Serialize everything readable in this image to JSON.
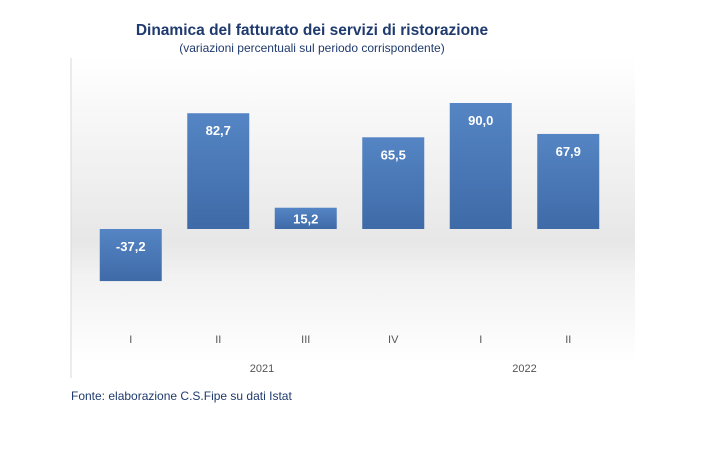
{
  "chart_data": {
    "type": "bar",
    "title": "Dinamica del fatturato dei servizi di ristorazione",
    "subtitle": "(variazioni percentuali sul periodo corrispondente)",
    "categories": [
      "I",
      "II",
      "III",
      "IV",
      "I",
      "II"
    ],
    "groups": [
      {
        "label": "2021",
        "categories": [
          "I",
          "II",
          "III",
          "IV"
        ]
      },
      {
        "label": "2022",
        "categories": [
          "I",
          "II"
        ]
      }
    ],
    "values": [
      -37.2,
      82.7,
      15.2,
      65.5,
      90.0,
      67.9
    ],
    "value_labels": [
      "-37,2",
      "82,7",
      "15,2",
      "65,5",
      "90,0",
      "67,9"
    ],
    "xlabel": "",
    "ylabel": "",
    "ylim": [
      -40,
      100
    ],
    "grid": false,
    "legend": "none",
    "colors": {
      "bar": "#4a78b8",
      "title": "#1f3a6e",
      "bar_label": "#ffffff",
      "tick": "#555555"
    }
  },
  "source_text": "Fonte: elaborazione C.S.Fipe su dati Istat"
}
